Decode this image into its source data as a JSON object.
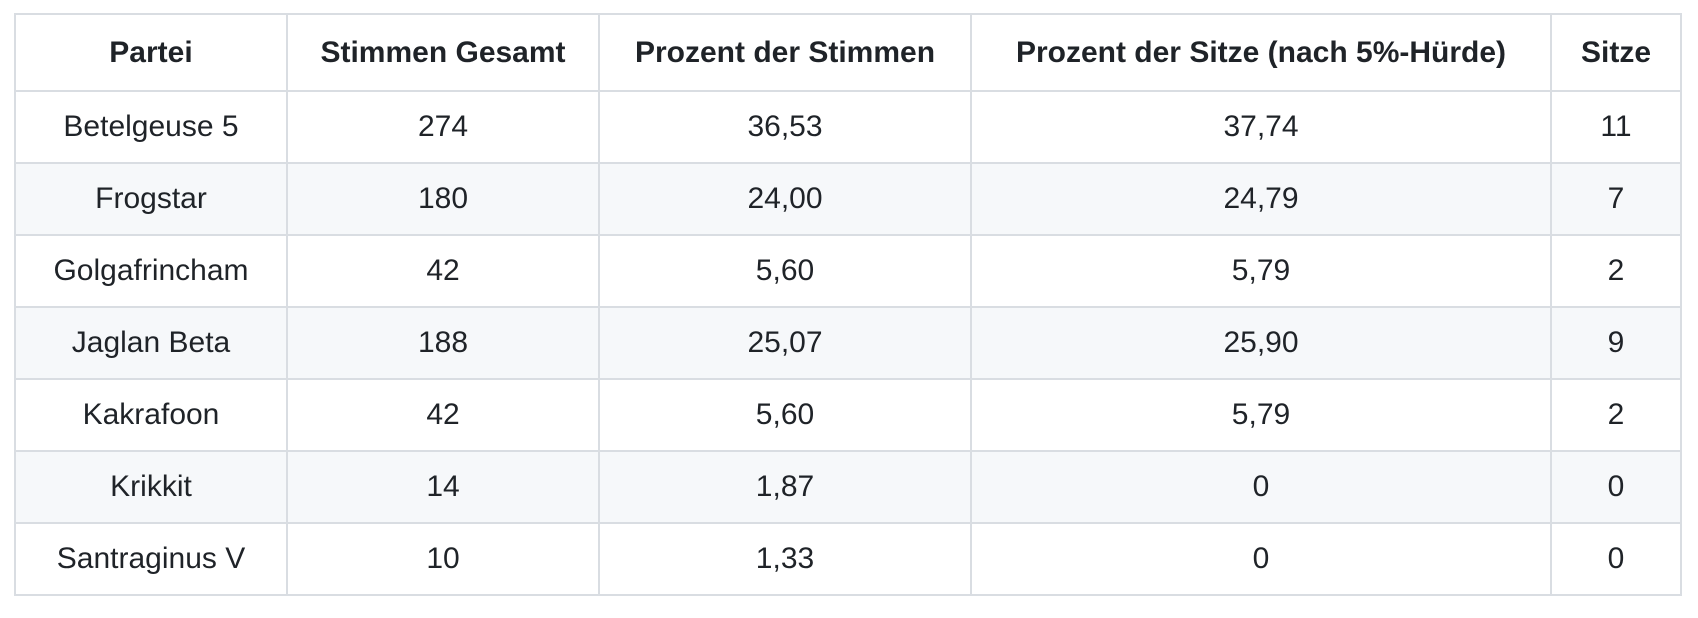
{
  "colors": {
    "border": "#d9dde2",
    "stripe_row_background": "#f6f8fa",
    "text": "#1f2328",
    "page_background": "#ffffff"
  },
  "table": {
    "columns": [
      "Partei",
      "Stimmen Gesamt",
      "Prozent der Stimmen",
      "Prozent der Sitze (nach 5%-Hürde)",
      "Sitze"
    ],
    "column_keys": [
      "partei",
      "stimmen-gesamt",
      "prozent-der-stimmen",
      "prozent-der-sitze",
      "sitze"
    ],
    "rows": [
      [
        "Betelgeuse 5",
        "274",
        "36,53",
        "37,74",
        "11"
      ],
      [
        "Frogstar",
        "180",
        "24,00",
        "24,79",
        "7"
      ],
      [
        "Golgafrincham",
        "42",
        "5,60",
        "5,79",
        "2"
      ],
      [
        "Jaglan Beta",
        "188",
        "25,07",
        "25,90",
        "9"
      ],
      [
        "Kakrafoon",
        "42",
        "5,60",
        "5,79",
        "2"
      ],
      [
        "Krikkit",
        "14",
        "1,87",
        "0",
        "0"
      ],
      [
        "Santraginus V",
        "10",
        "1,33",
        "0",
        "0"
      ]
    ]
  }
}
